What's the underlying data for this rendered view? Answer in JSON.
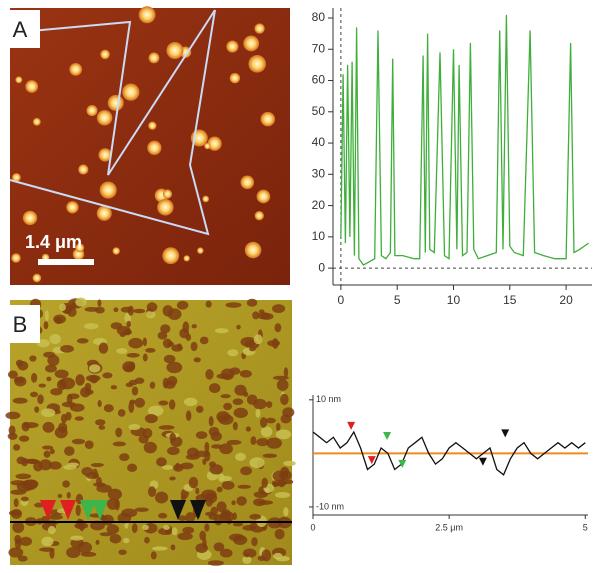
{
  "panels": {
    "a": {
      "label": "A",
      "scale_bar": "1.4 μm"
    },
    "b": {
      "label": "B"
    }
  },
  "chart_data": [
    {
      "type": "line",
      "color": "#3fae3a",
      "x": [
        0,
        0.2,
        0.4,
        0.6,
        0.8,
        1.0,
        1.2,
        1.4,
        1.6,
        1.8,
        2.0,
        2.5,
        3.0,
        3.3,
        3.6,
        4.0,
        4.4,
        4.6,
        4.8,
        5.5,
        6.5,
        7.0,
        7.3,
        7.5,
        7.7,
        7.9,
        8.3,
        8.8,
        9.2,
        9.6,
        10.0,
        10.3,
        10.5,
        10.8,
        11.2,
        11.5,
        11.8,
        12.2,
        13.0,
        13.8,
        14.1,
        14.4,
        14.7,
        15.0,
        15.4,
        16.2,
        16.8,
        17.2,
        18.0,
        19.0,
        20.0,
        20.4,
        20.7,
        21.2,
        22.0
      ],
      "values": [
        10,
        62,
        8,
        65,
        10,
        66,
        4,
        77,
        3,
        2,
        1,
        2,
        3,
        76,
        4,
        3,
        5,
        67,
        4,
        4,
        3,
        3,
        68,
        5,
        75,
        6,
        5,
        69,
        4,
        3,
        70,
        6,
        65,
        4,
        5,
        72,
        6,
        3,
        4,
        5,
        76,
        6,
        81,
        7,
        5,
        4,
        76,
        5,
        4,
        3,
        3,
        72,
        5,
        6,
        8
      ],
      "xlim": [
        -0.7,
        22.3
      ],
      "ylim": [
        -5.4,
        83.2
      ],
      "xticks": [
        0,
        5,
        10,
        15,
        20
      ],
      "yticks": [
        0,
        10,
        20,
        30,
        40,
        50,
        60,
        70,
        80
      ]
    },
    {
      "type": "line",
      "color": "#111111",
      "x": [
        0,
        0.125,
        0.25,
        0.375,
        0.5,
        0.625,
        0.75,
        0.875,
        1,
        1.125,
        1.25,
        1.375,
        1.5,
        1.625,
        1.75,
        1.875,
        2,
        2.125,
        2.25,
        2.375,
        2.5,
        2.625,
        2.75,
        2.875,
        3,
        3.125,
        3.25,
        3.375,
        3.5,
        3.625,
        3.75,
        3.875,
        4,
        4.125,
        4.25,
        4.375,
        4.5,
        4.625,
        4.75,
        4.875,
        5
      ],
      "values": [
        4,
        3,
        2,
        3,
        1,
        2,
        4,
        1,
        -3,
        -2,
        1,
        0,
        -3,
        -2,
        1,
        2,
        3,
        0,
        -2,
        -1,
        1,
        2,
        1,
        0,
        -1,
        0,
        1,
        -3,
        -4,
        -1,
        1,
        2,
        0,
        -1,
        0,
        1,
        2,
        1,
        2,
        1,
        2
      ],
      "xlim": [
        0,
        5.05
      ],
      "ylim": [
        -11.5,
        10.9
      ],
      "xticks": [
        0,
        {
          "value": 2.5,
          "label": "2.5 μm"
        },
        5
      ],
      "yticks": [
        {
          "value": 10,
          "label": "10 nm"
        },
        {
          "value": -10,
          "label": "-10 nm"
        }
      ],
      "reference_line": {
        "value": 0,
        "color": "#f08a1c"
      },
      "markers": {
        "x": [
          0.7,
          1.08,
          1.36,
          1.64,
          3.12,
          3.53
        ],
        "y": [
          4.4,
          -2,
          2.5,
          -2.7,
          -2.3,
          3
        ],
        "colors": [
          "#e02020",
          "#e02020",
          "#3cb54a",
          "#3cb54a",
          "#111111",
          "#111111"
        ]
      }
    }
  ]
}
